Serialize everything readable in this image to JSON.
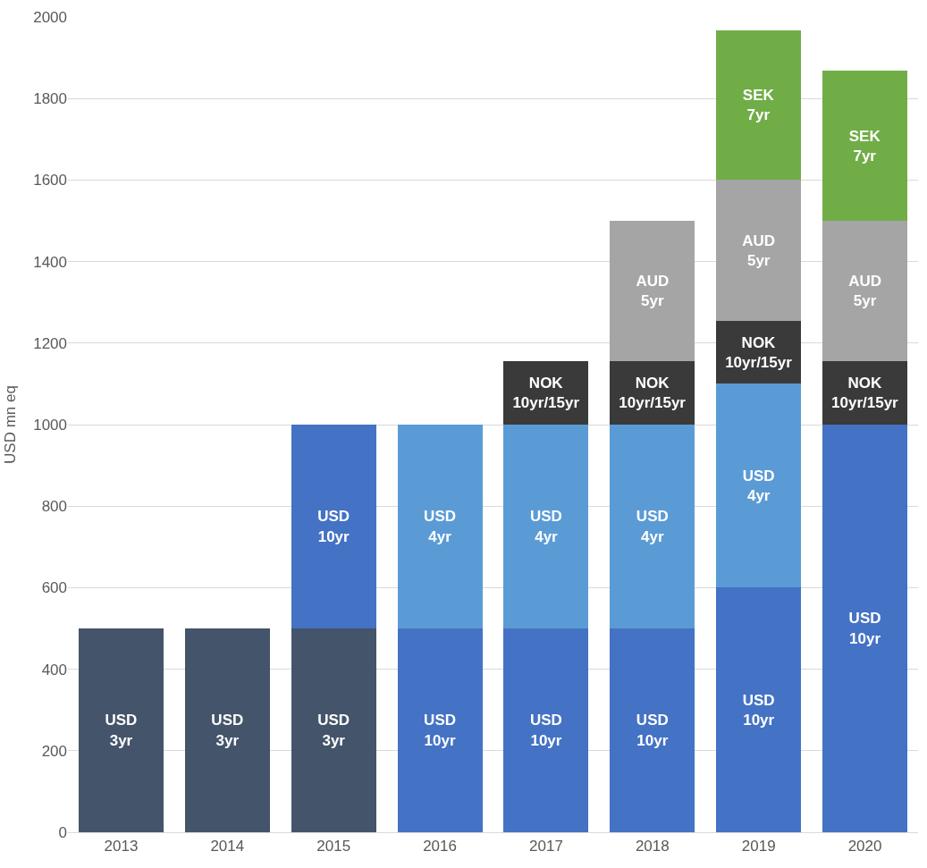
{
  "chart_data": {
    "type": "bar",
    "stacked": true,
    "ylabel": "USD mn eq",
    "categories": [
      "2013",
      "2014",
      "2015",
      "2016",
      "2017",
      "2018",
      "2019",
      "2020"
    ],
    "series": [
      {
        "name": "USD 3yr",
        "color": "#44546a",
        "values": [
          500,
          500,
          500,
          null,
          null,
          null,
          null,
          null
        ]
      },
      {
        "name": "USD 10yr",
        "color": "#4472c4",
        "values": [
          null,
          null,
          500,
          500,
          500,
          500,
          600,
          1000
        ]
      },
      {
        "name": "USD 4yr",
        "color": "#5b9bd5",
        "values": [
          null,
          null,
          null,
          500,
          500,
          500,
          500,
          null
        ]
      },
      {
        "name": "NOK 10yr/15yr",
        "color": "#3a3a3a",
        "values": [
          null,
          null,
          null,
          null,
          155,
          155,
          155,
          155
        ]
      },
      {
        "name": "AUD 5yr",
        "color": "#a5a5a5",
        "values": [
          null,
          null,
          null,
          null,
          null,
          345,
          345,
          345
        ]
      },
      {
        "name": "SEK 7yr",
        "color": "#70ad47",
        "values": [
          null,
          null,
          null,
          null,
          null,
          null,
          368,
          368
        ]
      }
    ],
    "ylim": [
      0,
      2000
    ],
    "yticks": [
      0,
      200,
      400,
      600,
      800,
      1000,
      1200,
      1400,
      1600,
      1800,
      2000
    ],
    "grid": "y",
    "legend": false
  }
}
